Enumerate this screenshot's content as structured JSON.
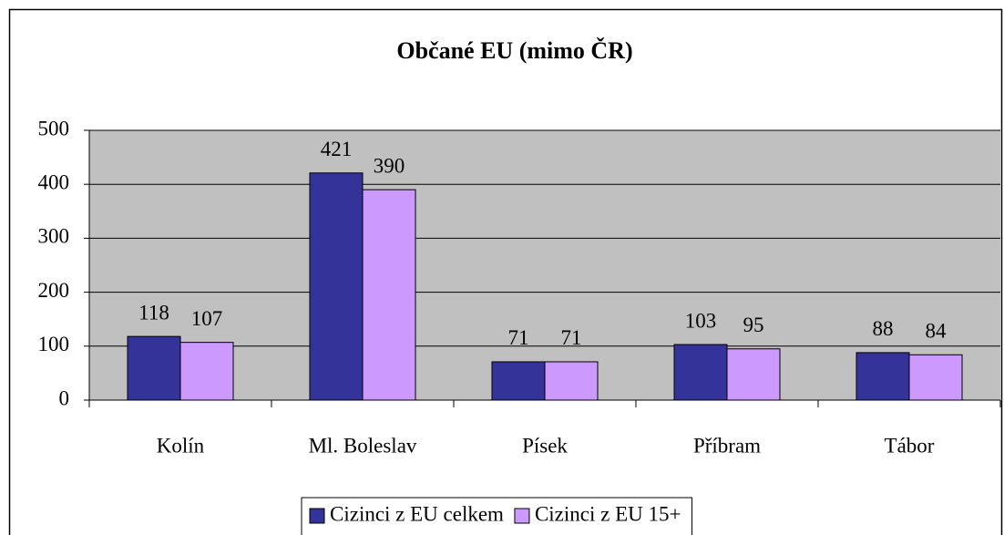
{
  "chart_data": {
    "type": "bar",
    "title": "Občané EU (mimo ČR)",
    "categories": [
      "Kolín",
      "Ml. Boleslav",
      "Písek",
      "Příbram",
      "Tábor"
    ],
    "series": [
      {
        "name": "Cizinci z EU celkem",
        "color": "#333399",
        "values": [
          118,
          421,
          71,
          103,
          88
        ]
      },
      {
        "name": "Cizinci z EU 15+",
        "color": "#cc99ff",
        "values": [
          107,
          390,
          71,
          95,
          84
        ]
      }
    ],
    "ylim": [
      0,
      500
    ],
    "yticks": [
      0,
      100,
      200,
      300,
      400,
      500
    ],
    "grid": true,
    "legend": "bottom"
  }
}
